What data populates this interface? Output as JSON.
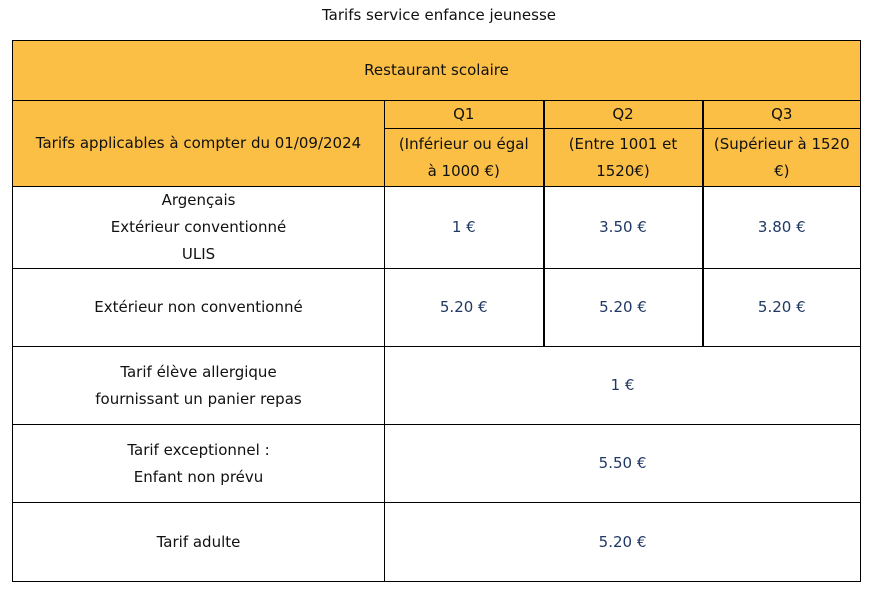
{
  "header": {
    "title": "Tarifs service enfance jeunesse"
  },
  "table": {
    "section": "Restaurant scolaire",
    "label_header": "Tarifs applicables à compter du 01/09/2024",
    "columns": [
      {
        "name": "Q1",
        "description": [
          "(Inférieur ou égal",
          "à 1000 €)"
        ]
      },
      {
        "name": "Q2",
        "description": [
          "(Entre 1001 et",
          "1520€)"
        ]
      },
      {
        "name": "Q3",
        "description": [
          "(Supérieur à 1520",
          "€)"
        ]
      }
    ],
    "rows": [
      {
        "label": [
          "Argençais",
          "Extérieur conventionné",
          "ULIS"
        ],
        "values": [
          "1 €",
          "3.50 €",
          "3.80 €"
        ]
      },
      {
        "label": [
          "Extérieur non conventionné"
        ],
        "values": [
          "5.20 €",
          "5.20 €",
          "5.20 €"
        ]
      },
      {
        "label": [
          "Tarif élève allergique",
          "fournissant un panier repas"
        ],
        "values": [
          "1 €"
        ]
      },
      {
        "label": [
          "Tarif exceptionnel :",
          "Enfant non prévu"
        ],
        "values": [
          "5.50 €"
        ]
      },
      {
        "label": [
          "Tarif adulte"
        ],
        "values": [
          "5.20 €"
        ]
      }
    ]
  }
}
